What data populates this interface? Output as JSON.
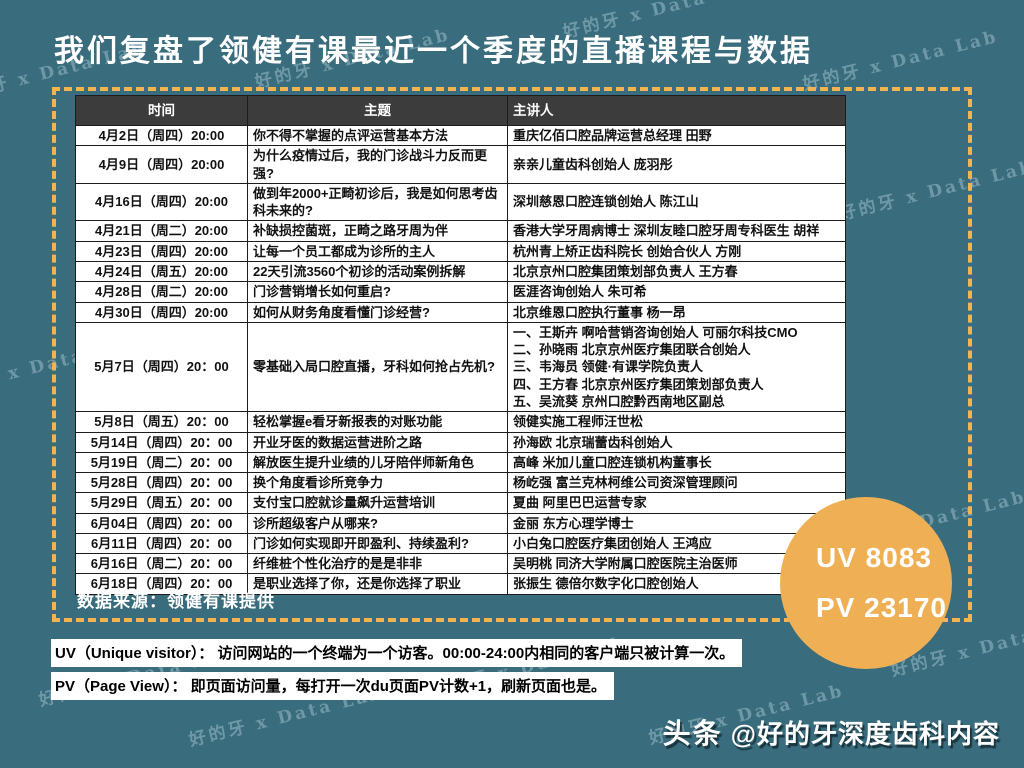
{
  "title": "我们复盘了领健有课最近一个季度的直播课程与数据",
  "watermark": "好的牙 x Data Lab",
  "colors": {
    "background": "#396D7E",
    "table_header": "#3C3C3C",
    "dashed_border": "#F2B350",
    "stats_circle": "#EFAF55"
  },
  "table": {
    "headers": [
      "时间",
      "主题",
      "主讲人"
    ],
    "rows": [
      {
        "time": "4月2日（周四）20:00",
        "topic": "你不得不掌握的点评运营基本方法",
        "speaker": "重庆亿佰口腔品牌运营总经理 田野"
      },
      {
        "time": "4月9日（周四）20:00",
        "topic": "为什么疫情过后，我的门诊战斗力反而更强?",
        "speaker": "亲亲儿童齿科创始人 庞羽彤"
      },
      {
        "time": "4月16日（周四）20:00",
        "topic": "做到年2000+正畸初诊后，我是如何思考齿科未来的?",
        "speaker": "深圳慈恩口腔连锁创始人 陈江山"
      },
      {
        "time": "4月21日（周二）20:00",
        "topic": "补缺损控菌斑，正畸之路牙周为伴",
        "speaker": "香港大学牙周病博士 深圳友睦口腔牙周专科医生 胡祥"
      },
      {
        "time": "4月23日（周四）20:00",
        "topic": "让每一个员工都成为诊所的主人",
        "speaker": "杭州青上矫正齿科院长 创始合伙人 方刚"
      },
      {
        "time": "4月24日（周五）20:00",
        "topic": "22天引流3560个初诊的活动案例拆解",
        "speaker": "北京京州口腔集团策划部负责人 王方春"
      },
      {
        "time": "4月28日（周二）20:00",
        "topic": "门诊营销增长如何重启?",
        "speaker": "医涯咨询创始人 朱可希"
      },
      {
        "time": "4月30日（周四）20:00",
        "topic": "如何从财务角度看懂门诊经营?",
        "speaker": "北京维恩口腔执行董事 杨一昂"
      },
      {
        "time": "5月7日（周四）20：00",
        "topic": "零基础入局口腔直播，牙科如何抢占先机?",
        "speaker": "一、王斯卉 啊哈营销咨询创始人 可丽尔科技CMO\n二、孙晓雨 北京京州医疗集团联合创始人\n三、韦海员 领健·有课学院负责人\n四、王方春 北京京州医疗集团策划部负责人\n五、吴流葵 京州口腔黔西南地区副总"
      },
      {
        "time": "5月8日（周五）20：00",
        "topic": "轻松掌握e看牙新报表的对账功能",
        "speaker": "领健实施工程师汪世松"
      },
      {
        "time": "5月14日（周四）20：00",
        "topic": "开业牙医的数据运营进阶之路",
        "speaker": "孙海欧 北京瑞蕾齿科创始人"
      },
      {
        "time": "5月19日（周二）20：00",
        "topic": "解放医生提升业绩的儿牙陪伴师新角色",
        "speaker": "高峰 米加儿童口腔连锁机构董事长"
      },
      {
        "time": "5月28日（周四）20：00",
        "topic": "换个角度看诊所竞争力",
        "speaker": "杨屹强 富兰克林柯维公司资深管理顾问"
      },
      {
        "time": "5月29日（周五）20：00",
        "topic": "支付宝口腔就诊量飙升运营培训",
        "speaker": "夏曲 阿里巴巴运营专家"
      },
      {
        "time": "6月04日（周四）20：00",
        "topic": "诊所超级客户从哪来?",
        "speaker": "金丽 东方心理学博士"
      },
      {
        "time": "6月11日（周四）20：00",
        "topic": "门诊如何实现即开即盈利、持续盈利?",
        "speaker": "小白兔口腔医疗集团创始人 王鸿应"
      },
      {
        "time": "6月16日（周二）20：00",
        "topic": "纤维桩个性化治疗的是是非非",
        "speaker": "吴明桃 同济大学附属口腔医院主治医师"
      },
      {
        "time": "6月18日（周四）20：00",
        "topic": "是职业选择了你，还是你选择了职业",
        "speaker": "张振生 德倍尔数字化口腔创始人"
      }
    ]
  },
  "source": "数据来源：领健有课提供",
  "stats": {
    "uv": "UV 8083",
    "pv": "PV 23170"
  },
  "notes": [
    "UV（Unique visitor）： 访问网站的一个终端为一个访客。00:00-24:00内相同的客户端只被计算一次。",
    "PV（Page View）： 即页面访问量，每打开一次du页面PV计数+1，刷新页面也是。"
  ],
  "footer": {
    "platform": "头条",
    "handle": "@好的牙深度齿科内容"
  }
}
